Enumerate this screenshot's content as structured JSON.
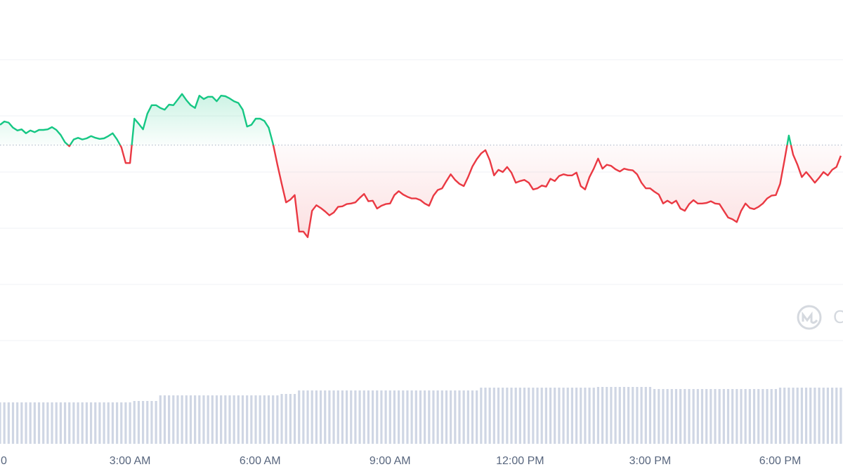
{
  "chart_data": {
    "type": "line",
    "x": [
      0,
      0.1,
      0.2,
      0.3,
      0.4,
      0.5,
      0.6,
      0.7,
      0.8,
      0.9,
      1,
      1.1,
      1.2,
      1.3,
      1.4,
      1.5,
      1.6,
      1.7,
      1.8,
      1.9,
      2,
      2.1,
      2.2,
      2.3,
      2.4,
      2.5,
      2.6,
      2.7,
      2.8,
      2.9,
      3,
      3.1,
      3.2,
      3.3,
      3.4,
      3.5,
      3.6,
      3.7,
      3.8,
      3.9,
      4,
      4.1,
      4.2,
      4.3,
      4.4,
      4.5,
      4.6,
      4.7,
      4.8,
      4.9,
      5,
      5.1,
      5.2,
      5.3,
      5.4,
      5.5,
      5.6,
      5.7,
      5.8,
      5.9,
      6,
      6.1,
      6.2,
      6.3,
      6.4,
      6.5,
      6.6,
      6.7,
      6.8,
      6.9,
      7,
      7.1,
      7.2,
      7.3,
      7.4,
      7.5,
      7.6,
      7.7,
      7.8,
      7.9,
      8,
      8.1,
      8.2,
      8.3,
      8.4,
      8.5,
      8.6,
      8.7,
      8.8,
      8.9,
      9,
      9.1,
      9.2,
      9.3,
      9.4,
      9.5,
      9.6,
      9.7,
      9.8,
      9.9,
      10,
      10.1,
      10.2,
      10.3,
      10.4,
      10.5,
      10.6,
      10.7,
      10.8,
      10.9,
      11,
      11.1,
      11.2,
      11.3,
      11.4,
      11.5,
      11.6,
      11.7,
      11.8,
      11.9,
      12,
      12.1,
      12.2,
      12.3,
      12.4,
      12.5,
      12.6,
      12.7,
      12.8,
      12.9,
      13,
      13.1,
      13.2,
      13.3,
      13.4,
      13.5,
      13.6,
      13.7,
      13.8,
      13.9,
      14,
      14.1,
      14.2,
      14.3,
      14.4,
      14.5,
      14.6,
      14.7,
      14.8,
      14.9,
      15,
      15.1,
      15.2,
      15.3,
      15.4,
      15.5,
      15.6,
      15.7,
      15.8,
      15.9,
      16,
      16.1,
      16.2,
      16.3,
      16.4,
      16.5,
      16.6,
      16.7,
      16.8,
      16.9,
      17,
      17.1,
      17.2,
      17.3,
      17.4,
      17.5,
      17.6,
      17.7,
      17.8,
      17.9,
      18,
      18.1,
      18.2,
      18.3,
      18.4,
      18.5,
      18.6,
      18.7,
      18.8,
      18.9,
      19,
      19.1,
      19.2,
      19.3,
      19.4
    ],
    "values": [
      3.84,
      3.9,
      3.88,
      3.79,
      3.74,
      3.76,
      3.69,
      3.74,
      3.71,
      3.75,
      3.75,
      3.76,
      3.8,
      3.75,
      3.66,
      3.53,
      3.46,
      3.58,
      3.61,
      3.58,
      3.6,
      3.64,
      3.61,
      3.59,
      3.6,
      3.64,
      3.69,
      3.58,
      3.44,
      3.16,
      3.16,
      3.95,
      3.86,
      3.76,
      4.04,
      4.19,
      4.19,
      4.14,
      4.11,
      4.2,
      4.19,
      4.29,
      4.39,
      4.28,
      4.19,
      4.14,
      4.36,
      4.3,
      4.34,
      4.34,
      4.26,
      4.36,
      4.35,
      4.31,
      4.26,
      4.23,
      4.11,
      3.81,
      3.84,
      3.95,
      3.95,
      3.91,
      3.79,
      3.5,
      3.13,
      2.79,
      2.46,
      2.51,
      2.59,
      1.94,
      1.94,
      1.84,
      2.31,
      2.41,
      2.36,
      2.3,
      2.23,
      2.28,
      2.38,
      2.39,
      2.43,
      2.44,
      2.46,
      2.54,
      2.61,
      2.48,
      2.49,
      2.35,
      2.4,
      2.43,
      2.44,
      2.59,
      2.66,
      2.6,
      2.56,
      2.53,
      2.53,
      2.5,
      2.44,
      2.4,
      2.58,
      2.68,
      2.71,
      2.84,
      2.96,
      2.86,
      2.79,
      2.75,
      2.91,
      3.1,
      3.23,
      3.33,
      3.39,
      3.21,
      2.94,
      3.04,
      3,
      3.09,
      2.99,
      2.81,
      2.84,
      2.86,
      2.81,
      2.69,
      2.71,
      2.76,
      2.74,
      2.88,
      2.84,
      2.93,
      2.96,
      2.94,
      2.94,
      2.99,
      2.75,
      2.69,
      2.91,
      3.06,
      3.24,
      3.06,
      3.13,
      3.11,
      3.05,
      3.01,
      3.06,
      3.04,
      3.03,
      2.96,
      2.81,
      2.71,
      2.71,
      2.65,
      2.6,
      2.44,
      2.49,
      2.44,
      2.49,
      2.35,
      2.31,
      2.43,
      2.5,
      2.44,
      2.44,
      2.45,
      2.48,
      2.44,
      2.43,
      2.31,
      2.19,
      2.16,
      2.11,
      2.31,
      2.44,
      2.36,
      2.34,
      2.38,
      2.44,
      2.53,
      2.58,
      2.59,
      2.79,
      3.21,
      3.65,
      3.31,
      3.13,
      2.91,
      3,
      2.91,
      2.81,
      2.9,
      3,
      2.94,
      3.04,
      3.09,
      3.29
    ],
    "up_color": "#16c784",
    "down_color": "#ea3943",
    "baseline": 3.48,
    "xlim": [
      0,
      19.45
    ],
    "ylim": [
      -1.8,
      6
    ],
    "yticks": [
      0,
      1,
      2,
      3,
      4,
      5
    ],
    "ytick_labels": false,
    "grid": true,
    "xticks": [
      {
        "value": 0,
        "label": "0"
      },
      {
        "value": 3,
        "label": "3:00 AM"
      },
      {
        "value": 6,
        "label": "6:00 AM"
      },
      {
        "value": 9,
        "label": "9:00 AM"
      },
      {
        "value": 12,
        "label": "12:00 PM"
      },
      {
        "value": 15,
        "label": "3:00 PM"
      },
      {
        "value": 18,
        "label": "6:00 PM"
      }
    ],
    "volume": {
      "color": "#cfd6e4",
      "ylim": [
        0,
        100
      ],
      "values": [
        59,
        59,
        59,
        59,
        59,
        59,
        59,
        59,
        59,
        59,
        59,
        59,
        59,
        59,
        59,
        59,
        59,
        59,
        59,
        59,
        59,
        59,
        59,
        59,
        59,
        59,
        59,
        59,
        59,
        59,
        59,
        61,
        61,
        61,
        61,
        61,
        61,
        69,
        69,
        69,
        69,
        69,
        69,
        69,
        69,
        69,
        69,
        69,
        69,
        69,
        69,
        69,
        69,
        69,
        69,
        69,
        69,
        69,
        69,
        69,
        69,
        69,
        69,
        69,
        69,
        71,
        71,
        71,
        71,
        76,
        76,
        76,
        76,
        76,
        76,
        76,
        76,
        76,
        76,
        76,
        76,
        76,
        76,
        76,
        76,
        76,
        76,
        76,
        76,
        76,
        76,
        76,
        76,
        76,
        76,
        76,
        76,
        76,
        76,
        76,
        76,
        76,
        76,
        76,
        76,
        76,
        76,
        76,
        76,
        76,
        76,
        80,
        80,
        80,
        80,
        80,
        80,
        80,
        80,
        80,
        80,
        80,
        80,
        80,
        80,
        80,
        80,
        80,
        80,
        80,
        80,
        80,
        80,
        80,
        80,
        80,
        80,
        80,
        81,
        81,
        81,
        81,
        81,
        81,
        81,
        81,
        81,
        81,
        81,
        81,
        81,
        78,
        78,
        78,
        78,
        78,
        78,
        78,
        78,
        78,
        78,
        78,
        78,
        78,
        78,
        78,
        78,
        78,
        78,
        78,
        78,
        78,
        78,
        78,
        78,
        78,
        78,
        78,
        78,
        78,
        80,
        80,
        80,
        80,
        80,
        80,
        80,
        80,
        80,
        80,
        80,
        80,
        80,
        80,
        80
      ]
    },
    "watermark": "C"
  }
}
